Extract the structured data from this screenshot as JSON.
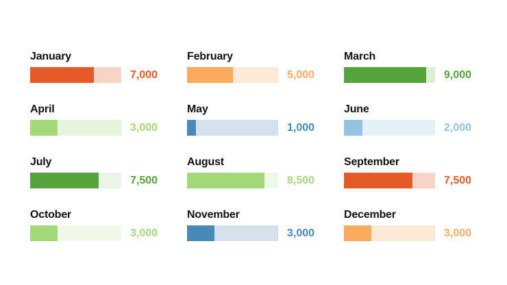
{
  "chart_data": {
    "type": "bar",
    "max": 10000,
    "items": [
      {
        "label": "January",
        "value": 7000,
        "value_label": "7,000",
        "color": "#e55a28",
        "track_color": "#f8d4c6"
      },
      {
        "label": "February",
        "value": 5000,
        "value_label": "5,000",
        "color": "#fcab5c",
        "track_color": "#fde8d5"
      },
      {
        "label": "March",
        "value": 9000,
        "value_label": "9,000",
        "color": "#56a33b",
        "track_color": "#dceed6"
      },
      {
        "label": "April",
        "value": 3000,
        "value_label": "3,000",
        "color": "#a4d979",
        "track_color": "#e7f4dd"
      },
      {
        "label": "May",
        "value": 1000,
        "value_label": "1,000",
        "color": "#4a88b8",
        "track_color": "#d3e1ed"
      },
      {
        "label": "June",
        "value": 2000,
        "value_label": "2,000",
        "color": "#93c3e3",
        "track_color": "#e4f0f8"
      },
      {
        "label": "July",
        "value": 7500,
        "value_label": "7,500",
        "color": "#56a33b",
        "track_color": "#eaf4e6"
      },
      {
        "label": "August",
        "value": 8500,
        "value_label": "8,500",
        "color": "#a4d979",
        "track_color": "#eef8e6"
      },
      {
        "label": "September",
        "value": 7500,
        "value_label": "7,500",
        "color": "#e55a28",
        "track_color": "#f8d4c6"
      },
      {
        "label": "October",
        "value": 3000,
        "value_label": "3,000",
        "color": "#a4d979",
        "track_color": "#f1f8ea"
      },
      {
        "label": "November",
        "value": 3000,
        "value_label": "3,000",
        "color": "#4a88b8",
        "track_color": "#d3e1ed"
      },
      {
        "label": "December",
        "value": 3000,
        "value_label": "3,000",
        "color": "#fcab5c",
        "track_color": "#fde8d5"
      }
    ]
  }
}
